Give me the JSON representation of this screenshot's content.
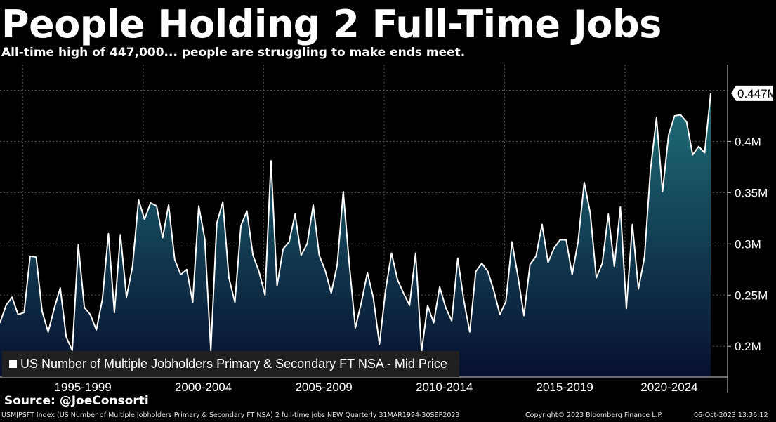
{
  "header": {
    "title": "People Holding 2 Full-Time Jobs",
    "subtitle": "All-time high of 447,000... people are struggling to make ends meet."
  },
  "legend": {
    "label": "US Number of Multiple Jobholders Primary & Secondary FT NSA - Mid Price"
  },
  "source": "Source: @JoeConsorti",
  "footer": {
    "description": "USMJPSFT Index (US Number of Multiple Jobholders Primary & Secondary FT NSA) 2 full-time jobs NEW  Quarterly 31MAR1994-30SEP2023",
    "copyright": "Copyright© 2023 Bloomberg Finance L.P.",
    "timestamp": "06-Oct-2023 13:36:12"
  },
  "colors": {
    "background": "#000000",
    "line": "#ffffff",
    "area_top": "#1f6f7a",
    "area_bottom": "#07102e",
    "grid": "#5a5a5a"
  },
  "chart_data": {
    "type": "area",
    "series": [
      {
        "name": "US Number of Multiple Jobholders Primary & Secondary FT NSA - Mid Price",
        "x_start": "1994 Q1",
        "frequency": "quarterly",
        "values": [
          0.223,
          0.24,
          0.248,
          0.231,
          0.233,
          0.288,
          0.287,
          0.234,
          0.214,
          0.237,
          0.257,
          0.209,
          0.196,
          0.299,
          0.238,
          0.231,
          0.216,
          0.246,
          0.31,
          0.233,
          0.309,
          0.248,
          0.278,
          0.343,
          0.324,
          0.34,
          0.337,
          0.306,
          0.338,
          0.285,
          0.27,
          0.275,
          0.243,
          0.337,
          0.305,
          0.196,
          0.32,
          0.341,
          0.267,
          0.243,
          0.318,
          0.332,
          0.289,
          0.273,
          0.25,
          0.381,
          0.259,
          0.295,
          0.302,
          0.329,
          0.289,
          0.3,
          0.338,
          0.289,
          0.274,
          0.252,
          0.28,
          0.351,
          0.28,
          0.218,
          0.243,
          0.272,
          0.247,
          0.202,
          0.254,
          0.291,
          0.265,
          0.252,
          0.24,
          0.291,
          0.195,
          0.24,
          0.223,
          0.258,
          0.238,
          0.225,
          0.286,
          0.245,
          0.214,
          0.273,
          0.281,
          0.273,
          0.254,
          0.231,
          0.244,
          0.302,
          0.268,
          0.23,
          0.28,
          0.288,
          0.319,
          0.282,
          0.296,
          0.304,
          0.304,
          0.27,
          0.303,
          0.36,
          0.33,
          0.267,
          0.281,
          0.329,
          0.278,
          0.336,
          0.237,
          0.319,
          0.256,
          0.287,
          0.372,
          0.423,
          0.351,
          0.406,
          0.425,
          0.426,
          0.419,
          0.387,
          0.395,
          0.389,
          0.447
        ]
      }
    ],
    "y_ticks": [
      0.2,
      0.25,
      0.3,
      0.35,
      0.4
    ],
    "y_tick_labels": [
      "0.2M",
      "0.25M",
      "0.3M",
      "0.35M",
      "0.4M"
    ],
    "ylim": [
      0.17,
      0.475
    ],
    "x_tick_labels": [
      "1995-1999",
      "2000-2004",
      "2005-2009",
      "2010-2014",
      "2015-2019",
      "2020-2024"
    ],
    "last_value_label": "0.447M",
    "grid": true,
    "legend_position": "bottom-left"
  }
}
